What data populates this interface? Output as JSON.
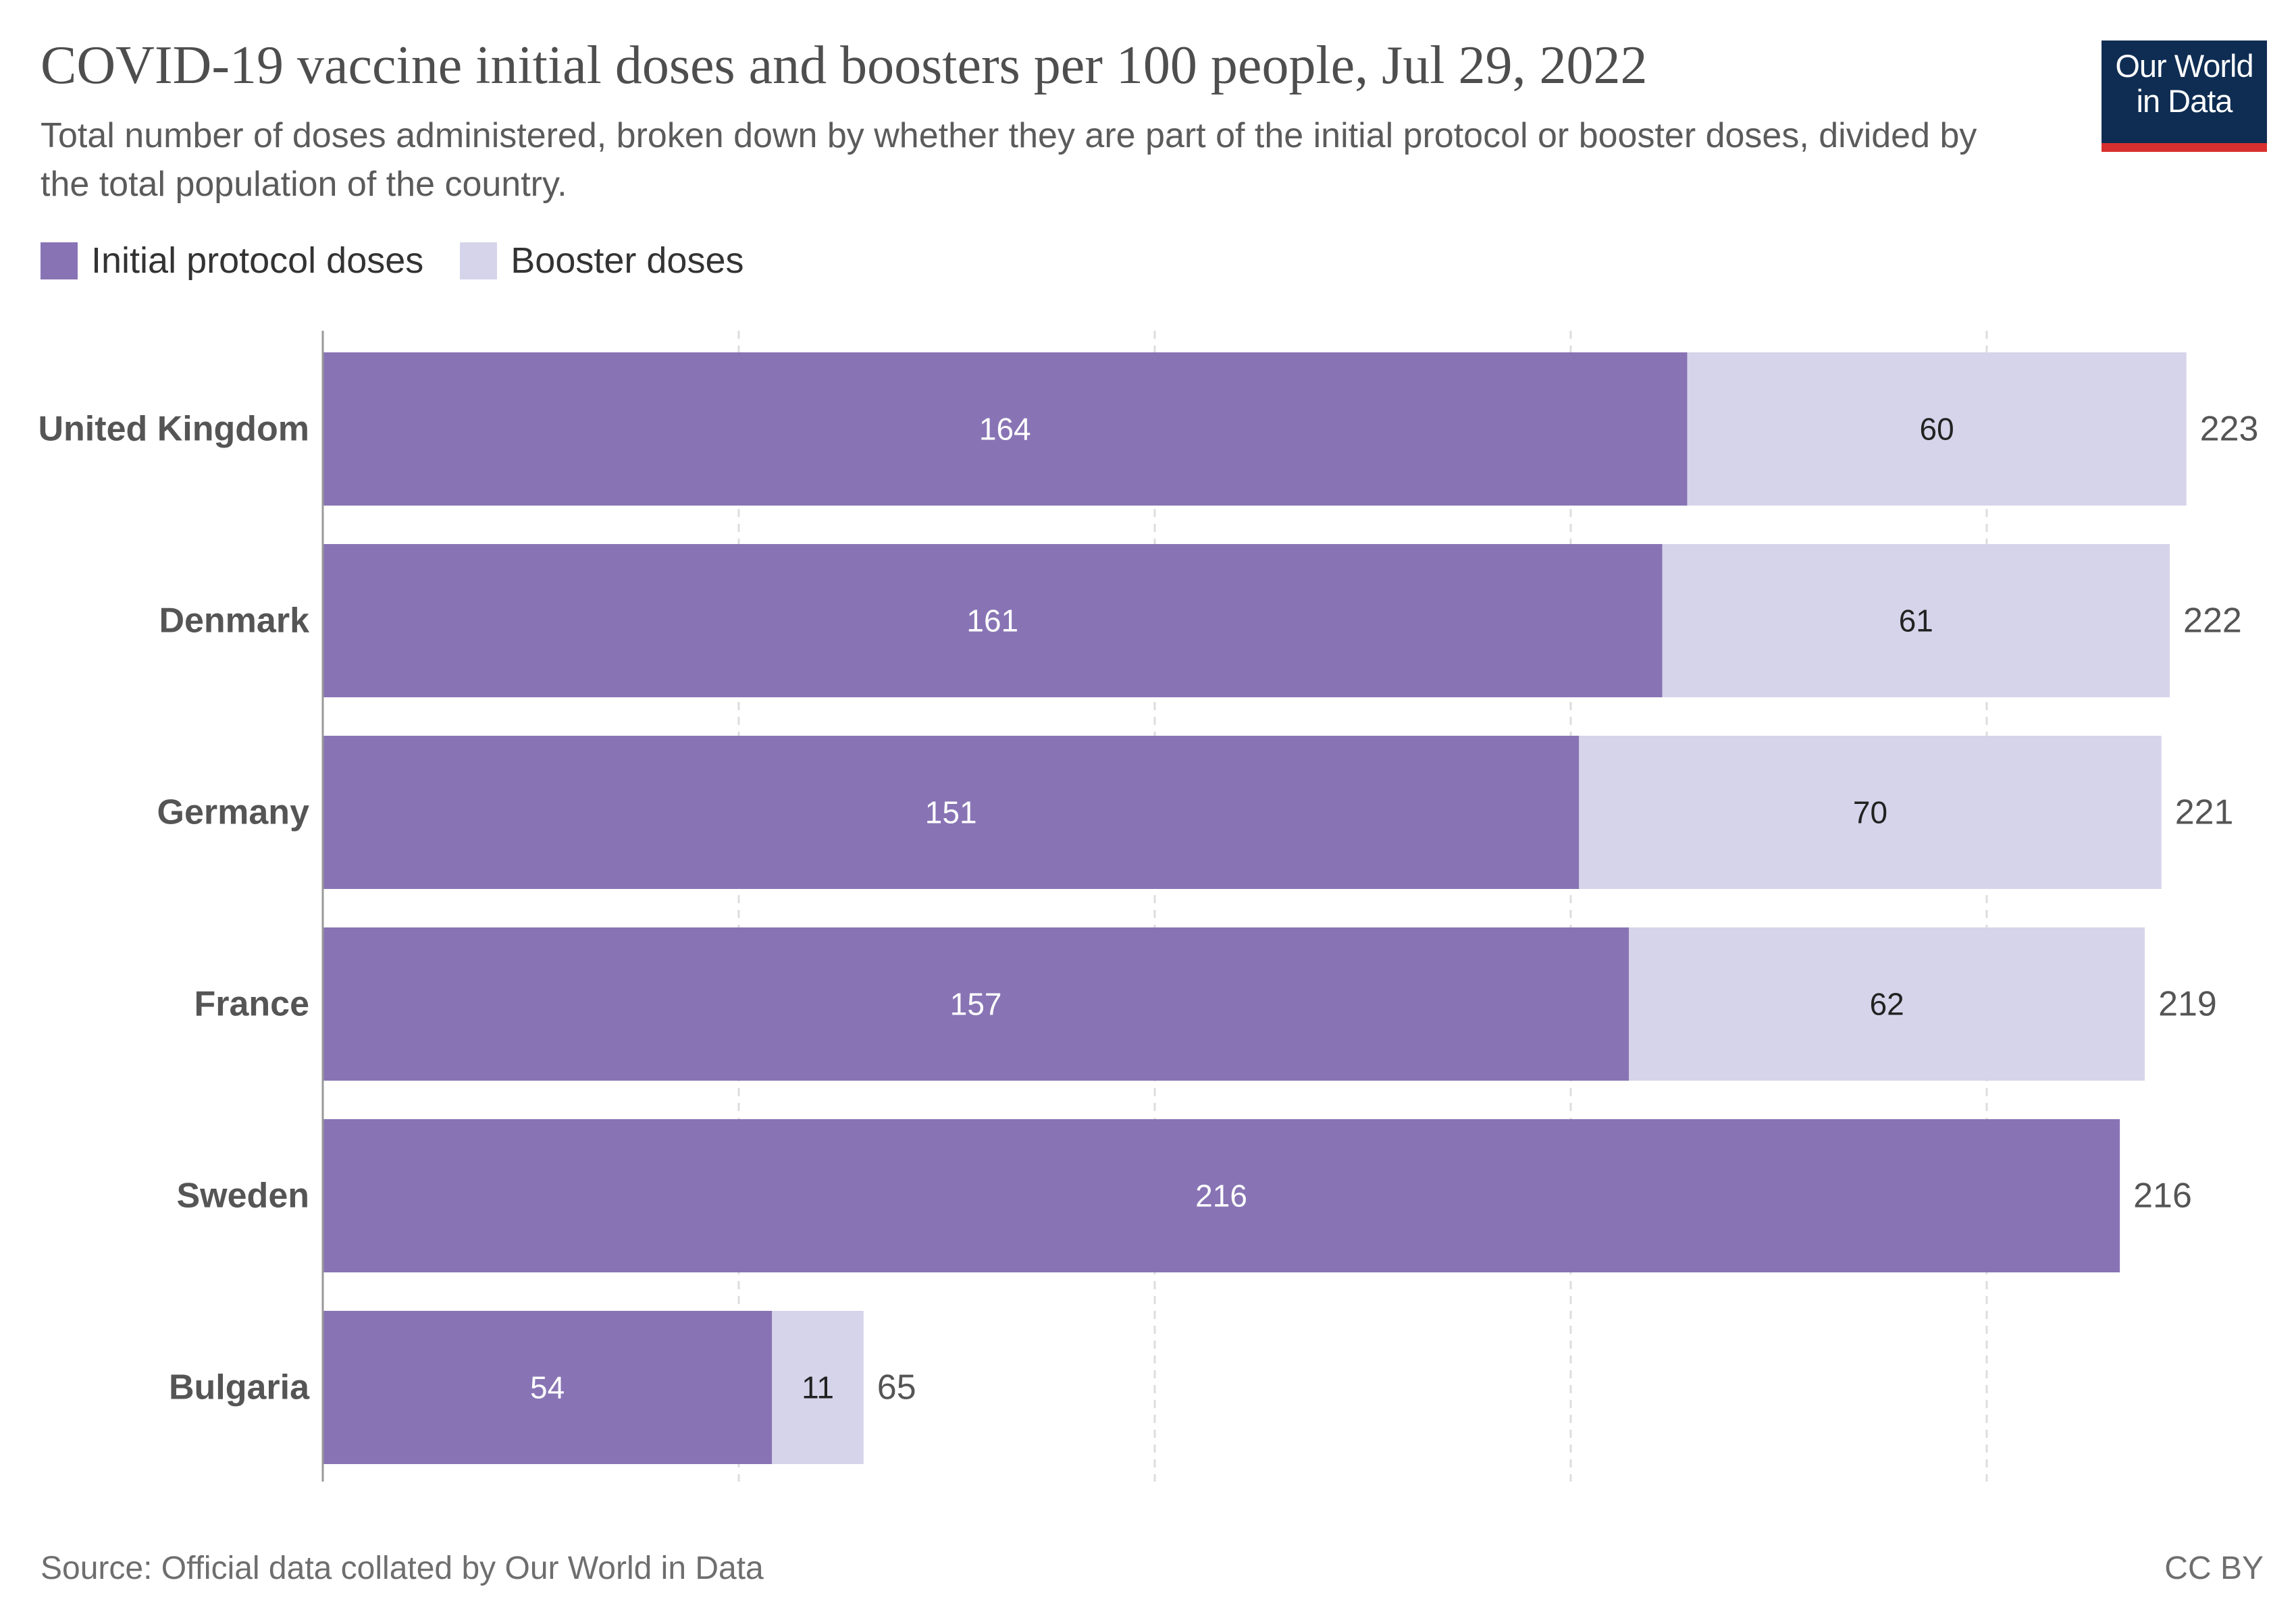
{
  "header": {
    "title": "COVID-19 vaccine initial doses and boosters per 100 people, Jul 29, 2022",
    "subtitle": "Total number of doses administered, broken down by whether they are part of the initial protocol or booster doses, divided by the total population of the country."
  },
  "logo": {
    "line1": "Our World",
    "line2": "in Data"
  },
  "legend": [
    {
      "label": "Initial protocol doses",
      "color": "#8874b4"
    },
    {
      "label": "Booster doses",
      "color": "#d6d4ea"
    }
  ],
  "footer": {
    "source": "Source: Official data collated by Our World in Data",
    "license": "CC BY"
  },
  "chart_data": {
    "type": "bar",
    "orientation": "horizontal",
    "stacked": true,
    "categories": [
      "United Kingdom",
      "Denmark",
      "Germany",
      "France",
      "Sweden",
      "Bulgaria"
    ],
    "series": [
      {
        "name": "Initial protocol doses",
        "color": "#8874b4",
        "label_color": "#ffffff",
        "values": [
          164,
          161,
          151,
          157,
          216,
          54
        ]
      },
      {
        "name": "Booster doses",
        "color": "#d6d4ea",
        "label_color": "#222222",
        "values": [
          60,
          61,
          70,
          62,
          0,
          11
        ]
      }
    ],
    "totals": [
      223,
      222,
      221,
      219,
      216,
      65
    ],
    "xlim": [
      0,
      225
    ],
    "grid": "dashed vertical lines every 50",
    "tick_labels_shown": false
  }
}
